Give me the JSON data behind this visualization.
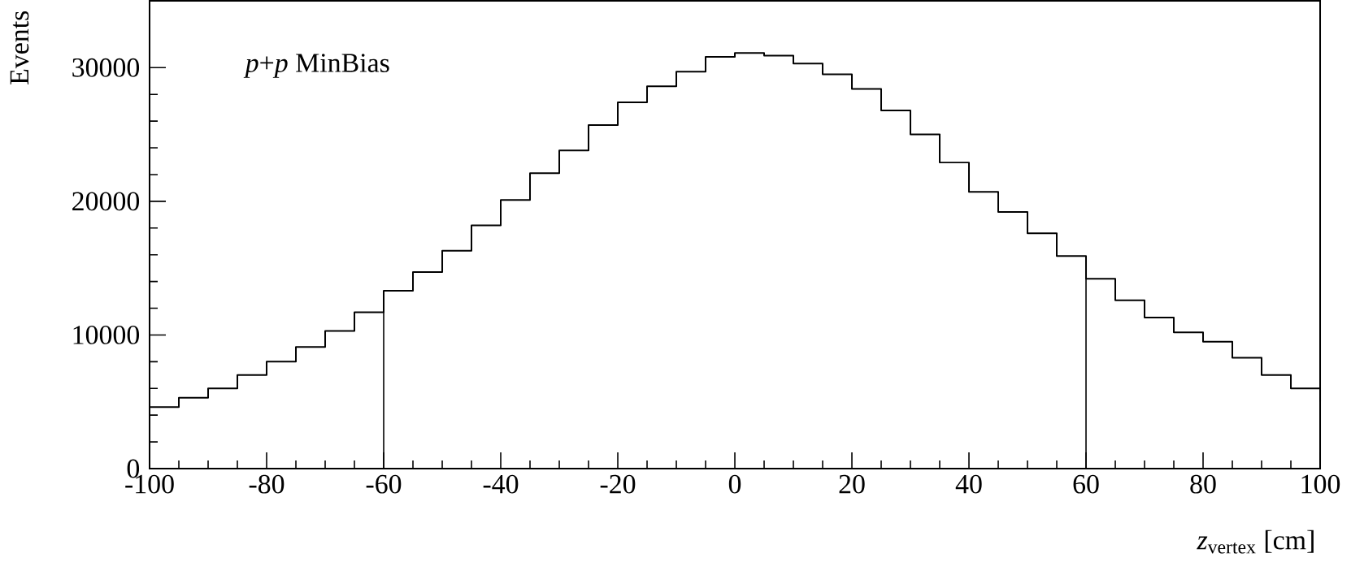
{
  "chart_data": {
    "type": "step",
    "annotations": [
      "*p*+*p* MinBias"
    ],
    "xlabel": "*z*$_{vertex}$ [cm]",
    "ylabel": "Events",
    "x": [
      -100,
      -95,
      -90,
      -85,
      -80,
      -75,
      -70,
      -65,
      -60,
      -55,
      -50,
      -45,
      -40,
      -35,
      -30,
      -25,
      -20,
      -15,
      -10,
      -5,
      0,
      5,
      10,
      15,
      20,
      25,
      30,
      35,
      40,
      45,
      50,
      55,
      60,
      65,
      70,
      75,
      80,
      85,
      90,
      95,
      100
    ],
    "series": [
      {
        "color": "#000000",
        "values": [
          4600,
          5300,
          6000,
          7000,
          8000,
          9100,
          10300,
          11700,
          13300,
          14700,
          16300,
          18200,
          20100,
          22100,
          23800,
          25700,
          27400,
          28600,
          29700,
          30800,
          31100,
          30900,
          30300,
          29500,
          28400,
          26800,
          25000,
          22900,
          20700,
          19200,
          17600,
          15900,
          14200,
          12600,
          11300,
          10200,
          9500,
          8300,
          7000,
          6000,
          5000
        ]
      }
    ],
    "xlim": [
      -100,
      100
    ],
    "ylim": [
      0,
      35000
    ],
    "xticks": [
      -100,
      -80,
      -60,
      -40,
      -20,
      0,
      20,
      40,
      60,
      80,
      100
    ],
    "yticks": [
      0,
      10000,
      20000,
      30000
    ],
    "ref_lines": [
      {
        "axis": "x",
        "value": -60,
        "color": "#000000"
      },
      {
        "axis": "x",
        "value": 60,
        "color": "#000000"
      }
    ]
  }
}
